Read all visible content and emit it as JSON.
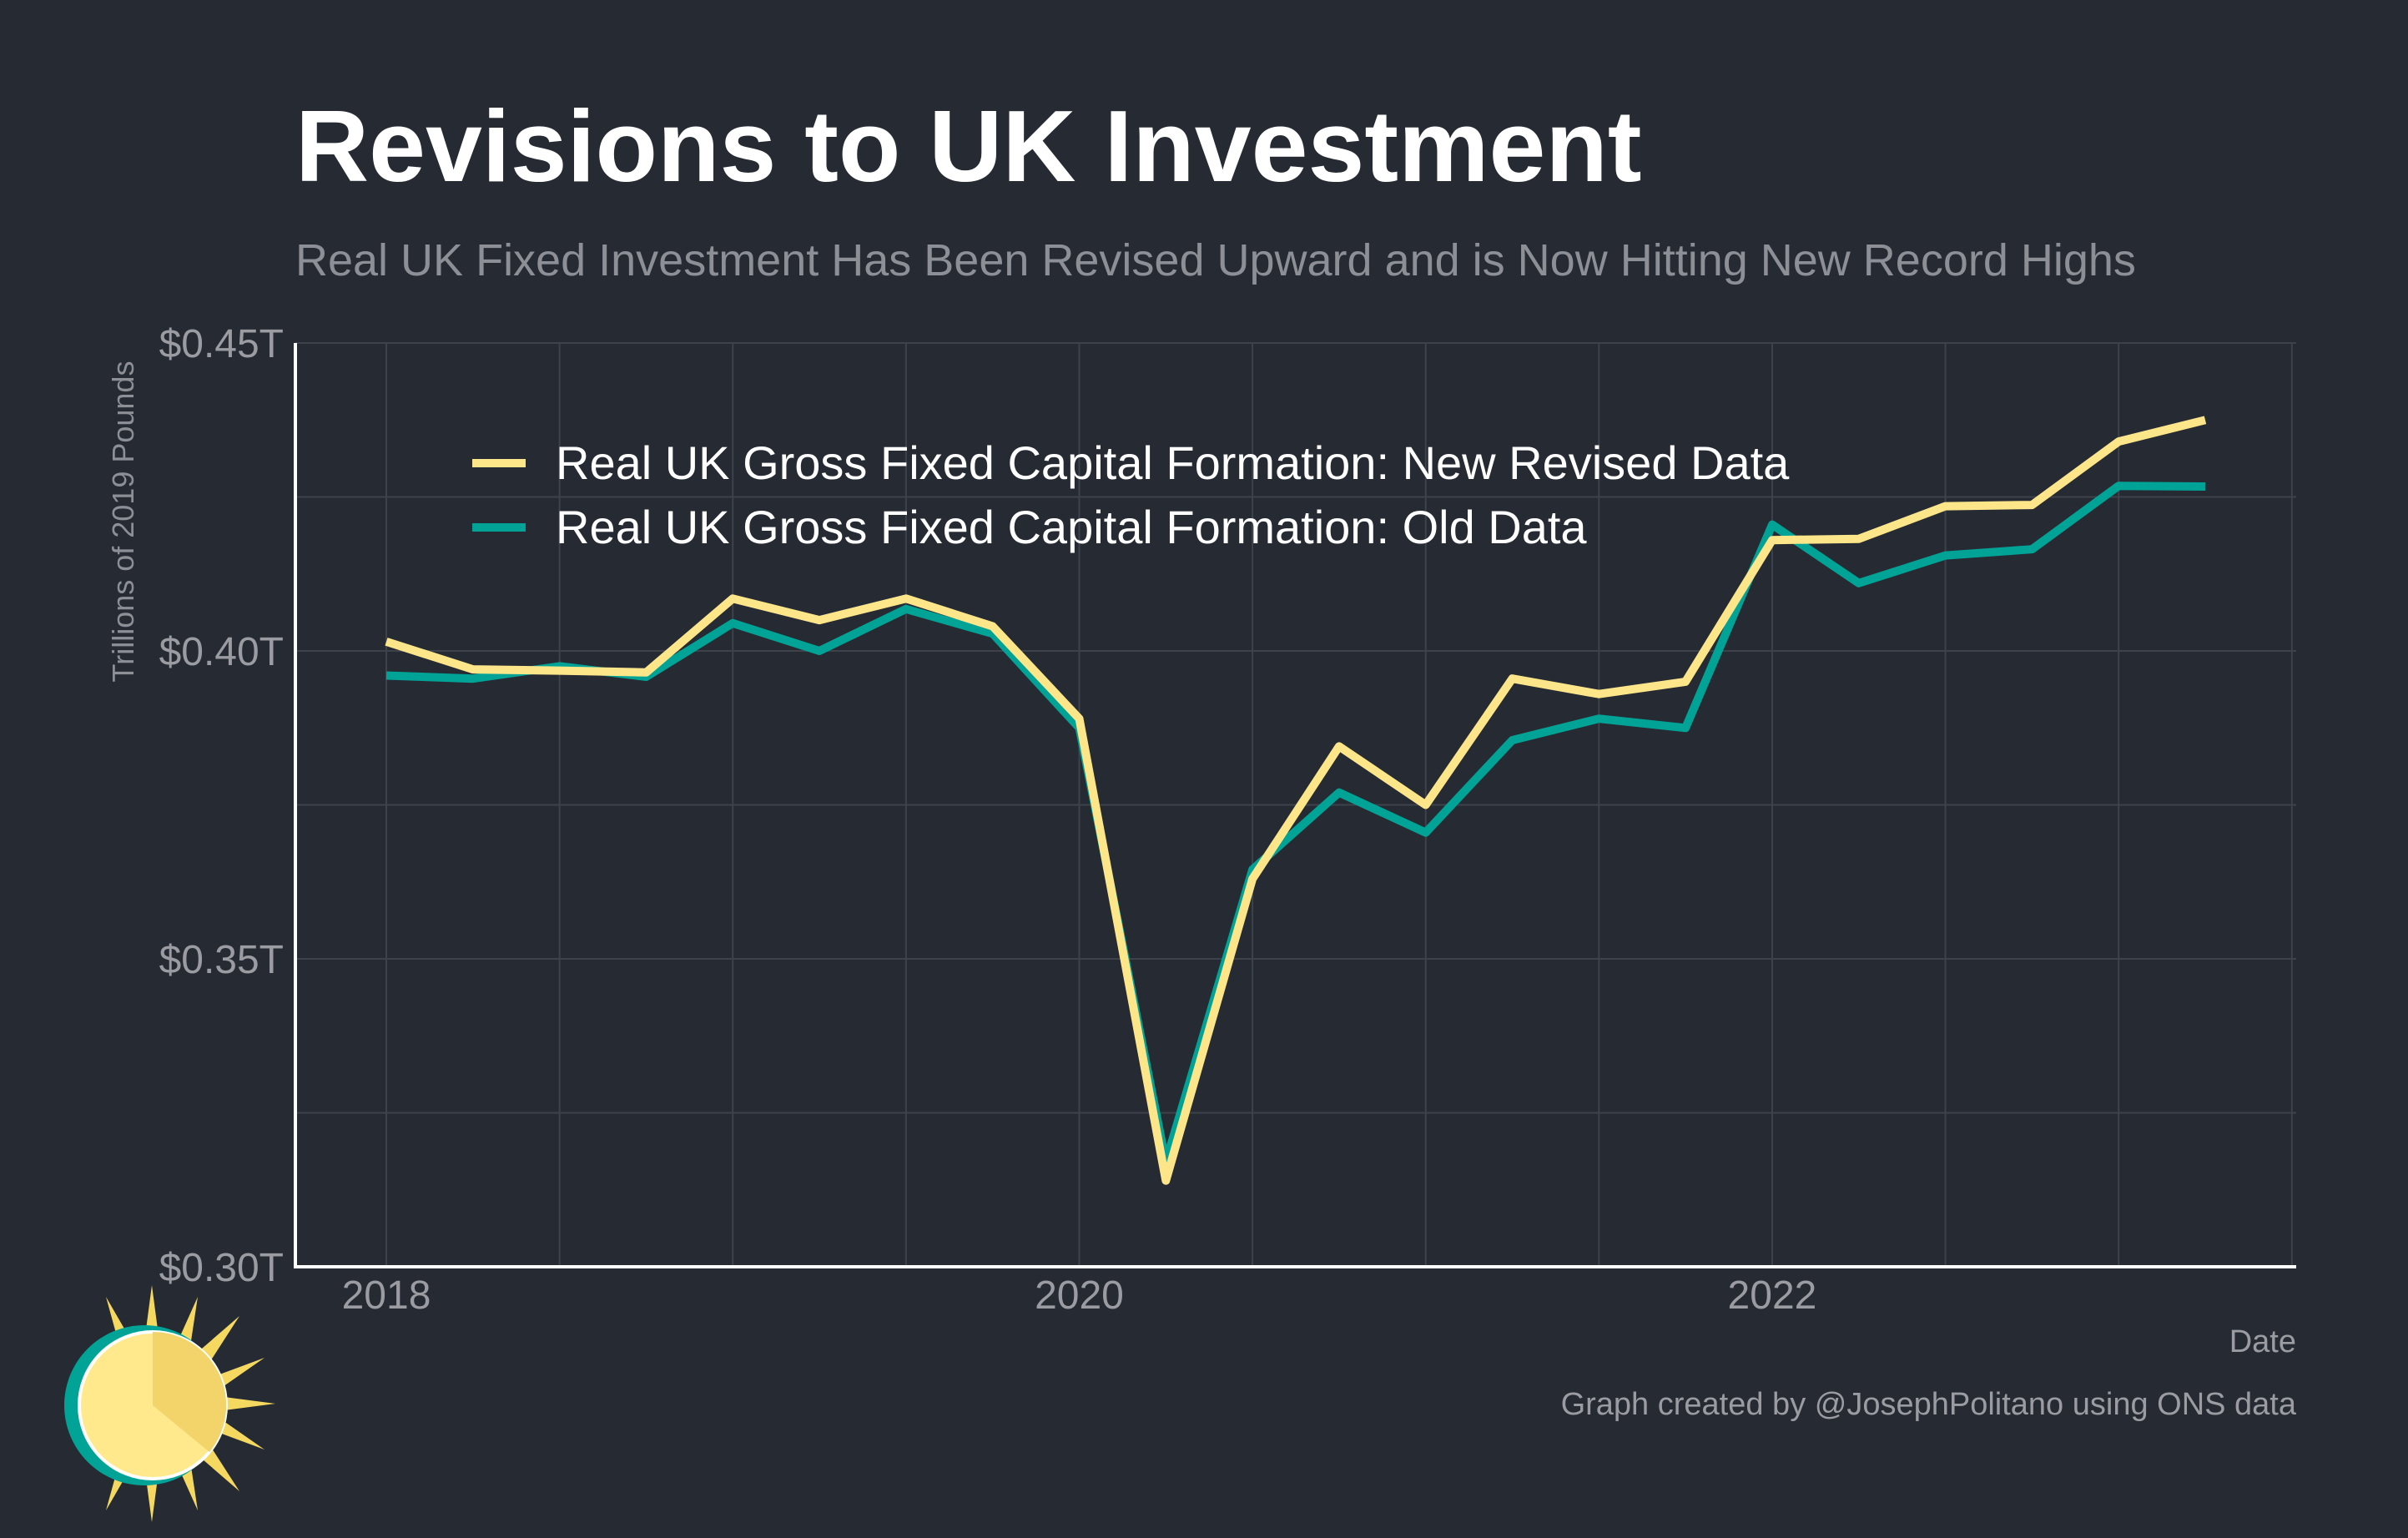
{
  "title": "Revisions to UK Investment",
  "subtitle": "Real UK Fixed Investment Has Been Revised Upward and is Now Hitting New Record Highs",
  "footer": {
    "source": "Graph created by @JosephPolitano using ONS data"
  },
  "colors": {
    "background": "#252a33",
    "new_series": "#fde68a",
    "old_series": "#00a396",
    "grid": "#3d424b",
    "axis": "#ffffff",
    "tick_text": "#9a9ca2"
  },
  "chart_data": {
    "type": "line",
    "title": "Revisions to UK Investment",
    "subtitle": "Real UK Fixed Investment Has Been Revised Upward and is Now Hitting New Record Highs",
    "xlabel": "Date",
    "ylabel": "Trillions of 2019 Pounds",
    "x_ticks": [
      "2018",
      "2020",
      "2022"
    ],
    "y_ticks": [
      "$0.30T",
      "$0.35T",
      "$0.40T",
      "$0.45T"
    ],
    "y_tick_values": [
      0.3,
      0.35,
      0.4,
      0.45
    ],
    "ylim": [
      0.3,
      0.45
    ],
    "xlim": [
      "2017-Q4",
      "2023-Q3"
    ],
    "grid": true,
    "legend_position": "top-left",
    "x": [
      "2018-Q1",
      "2018-Q2",
      "2018-Q3",
      "2018-Q4",
      "2019-Q1",
      "2019-Q2",
      "2019-Q3",
      "2019-Q4",
      "2020-Q1",
      "2020-Q2",
      "2020-Q3",
      "2020-Q4",
      "2021-Q1",
      "2021-Q2",
      "2021-Q3",
      "2021-Q4",
      "2022-Q1",
      "2022-Q2",
      "2022-Q3",
      "2022-Q4",
      "2023-Q1",
      "2023-Q2"
    ],
    "series": [
      {
        "name": "Real UK Gross Fixed Capital Formation: New Revised Data",
        "color": "#fde68a",
        "values": [
          0.4015,
          0.397,
          0.3968,
          0.3965,
          0.4085,
          0.405,
          0.4085,
          0.404,
          0.389,
          0.314,
          0.363,
          0.3845,
          0.375,
          0.3955,
          0.393,
          0.395,
          0.418,
          0.4182,
          0.4235,
          0.4237,
          0.434,
          0.4375
        ]
      },
      {
        "name": "Real UK Gross Fixed Capital Formation: Old Data",
        "color": "#00a396",
        "values": [
          0.396,
          0.3955,
          0.3975,
          0.3958,
          0.4045,
          0.4,
          0.4068,
          0.4028,
          0.3875,
          0.317,
          0.3645,
          0.377,
          0.3705,
          0.3855,
          0.389,
          0.3875,
          0.4205,
          0.411,
          0.4155,
          0.4165,
          0.4268,
          0.4267
        ]
      }
    ]
  }
}
